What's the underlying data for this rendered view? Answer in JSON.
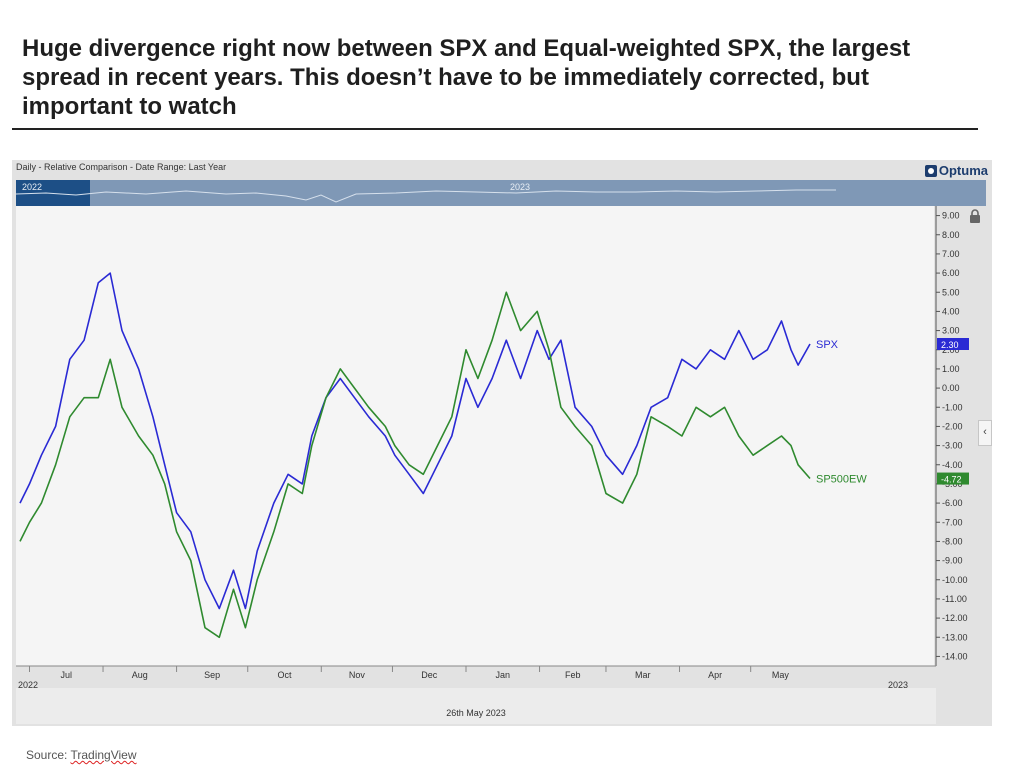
{
  "headline": {
    "line1": "Huge divergence right now between SPX and Equal-weighted SPX, the largest",
    "line2": "spread in recent years.  This doesn’t have to be immediately corrected, but",
    "line3": "important to watch"
  },
  "chart_header": "Daily - Relative Comparison - Date Range: Last Year",
  "brand": "Optuma",
  "navigator": {
    "year_left": "2022",
    "year_mid": "2023"
  },
  "date_caption": "26th May 2023",
  "source": {
    "prefix": "Source: ",
    "link": "TradingView"
  },
  "colors": {
    "spx": "#2a2ad4",
    "sp500ew": "#2f8a2f",
    "navigator": "#7f98b6",
    "navigator_window": "#1d4f86"
  },
  "icons": [
    "optuma-logo-icon",
    "lock-icon",
    "chevron-left-icon"
  ],
  "chart_data": {
    "type": "line",
    "title": "Daily - Relative Comparison - Date Range: Last Year",
    "x_start": "2022-06-27",
    "x_end": "2023-05-26",
    "x_tick_labels": [
      "Jul",
      "Aug",
      "Sep",
      "Oct",
      "Nov",
      "Dec",
      "Jan",
      "Feb",
      "Mar",
      "Apr",
      "May"
    ],
    "year_labels": [
      "2022",
      "2023"
    ],
    "ylim": [
      -14.5,
      9.5
    ],
    "y_ticks": [
      9,
      8,
      7,
      6,
      5,
      4,
      3,
      2,
      1,
      0,
      -1,
      -2,
      -3,
      -4,
      -5,
      -6,
      -7,
      -8,
      -9,
      -10,
      -11,
      -12,
      -13,
      -14
    ],
    "grid": false,
    "series": [
      {
        "name": "SPX",
        "color": "#2a2ad4",
        "last_value_label": "2.30",
        "x": [
          "2022-06-27",
          "2022-07-01",
          "2022-07-06",
          "2022-07-12",
          "2022-07-18",
          "2022-07-24",
          "2022-07-30",
          "2022-08-04",
          "2022-08-09",
          "2022-08-16",
          "2022-08-22",
          "2022-08-27",
          "2022-09-01",
          "2022-09-07",
          "2022-09-13",
          "2022-09-19",
          "2022-09-25",
          "2022-09-30",
          "2022-10-05",
          "2022-10-12",
          "2022-10-18",
          "2022-10-24",
          "2022-10-28",
          "2022-11-03",
          "2022-11-09",
          "2022-11-15",
          "2022-11-21",
          "2022-11-28",
          "2022-12-02",
          "2022-12-08",
          "2022-12-14",
          "2022-12-20",
          "2022-12-26",
          "2023-01-01",
          "2023-01-06",
          "2023-01-12",
          "2023-01-18",
          "2023-01-24",
          "2023-01-31",
          "2023-02-05",
          "2023-02-10",
          "2023-02-16",
          "2023-02-23",
          "2023-03-01",
          "2023-03-08",
          "2023-03-14",
          "2023-03-20",
          "2023-03-27",
          "2023-04-02",
          "2023-04-08",
          "2023-04-14",
          "2023-04-20",
          "2023-04-26",
          "2023-05-02",
          "2023-05-08",
          "2023-05-14",
          "2023-05-18",
          "2023-05-21",
          "2023-05-26"
        ],
        "values": [
          -6.0,
          -5.0,
          -3.5,
          -2.0,
          1.5,
          2.5,
          5.5,
          6.0,
          3.0,
          1.0,
          -1.5,
          -4.0,
          -6.5,
          -7.5,
          -10.0,
          -11.5,
          -9.5,
          -11.5,
          -8.5,
          -6.0,
          -4.5,
          -5.0,
          -2.5,
          -0.5,
          0.5,
          -0.5,
          -1.5,
          -2.5,
          -3.5,
          -4.5,
          -5.5,
          -4.0,
          -2.5,
          0.5,
          -1.0,
          0.5,
          2.5,
          0.5,
          3.0,
          1.5,
          2.5,
          -1.0,
          -2.0,
          -3.5,
          -4.5,
          -3.0,
          -1.0,
          -0.5,
          1.5,
          1.0,
          2.0,
          1.5,
          3.0,
          1.5,
          2.0,
          3.5,
          2.0,
          1.2,
          2.3
        ]
      },
      {
        "name": "SP500EW",
        "color": "#2f8a2f",
        "last_value_label": "-4.72",
        "x": [
          "2022-06-27",
          "2022-07-01",
          "2022-07-06",
          "2022-07-12",
          "2022-07-18",
          "2022-07-24",
          "2022-07-30",
          "2022-08-04",
          "2022-08-09",
          "2022-08-16",
          "2022-08-22",
          "2022-08-27",
          "2022-09-01",
          "2022-09-07",
          "2022-09-13",
          "2022-09-19",
          "2022-09-25",
          "2022-09-30",
          "2022-10-05",
          "2022-10-12",
          "2022-10-18",
          "2022-10-24",
          "2022-10-28",
          "2022-11-03",
          "2022-11-09",
          "2022-11-15",
          "2022-11-21",
          "2022-11-28",
          "2022-12-02",
          "2022-12-08",
          "2022-12-14",
          "2022-12-20",
          "2022-12-26",
          "2023-01-01",
          "2023-01-06",
          "2023-01-12",
          "2023-01-18",
          "2023-01-24",
          "2023-01-31",
          "2023-02-05",
          "2023-02-10",
          "2023-02-16",
          "2023-02-23",
          "2023-03-01",
          "2023-03-08",
          "2023-03-14",
          "2023-03-20",
          "2023-03-27",
          "2023-04-02",
          "2023-04-08",
          "2023-04-14",
          "2023-04-20",
          "2023-04-26",
          "2023-05-02",
          "2023-05-08",
          "2023-05-14",
          "2023-05-18",
          "2023-05-21",
          "2023-05-26"
        ],
        "values": [
          -8.0,
          -7.0,
          -6.0,
          -4.0,
          -1.5,
          -0.5,
          -0.5,
          1.5,
          -1.0,
          -2.5,
          -3.5,
          -5.0,
          -7.5,
          -9.0,
          -12.5,
          -13.0,
          -10.5,
          -12.5,
          -10.0,
          -7.5,
          -5.0,
          -5.5,
          -3.0,
          -0.5,
          1.0,
          0.0,
          -1.0,
          -2.0,
          -3.0,
          -4.0,
          -4.5,
          -3.0,
          -1.5,
          2.0,
          0.5,
          2.5,
          5.0,
          3.0,
          4.0,
          2.0,
          -1.0,
          -2.0,
          -3.0,
          -5.5,
          -6.0,
          -4.5,
          -1.5,
          -2.0,
          -2.5,
          -1.0,
          -1.5,
          -1.0,
          -2.5,
          -3.5,
          -3.0,
          -2.5,
          -3.0,
          -4.0,
          -4.72
        ]
      }
    ]
  }
}
